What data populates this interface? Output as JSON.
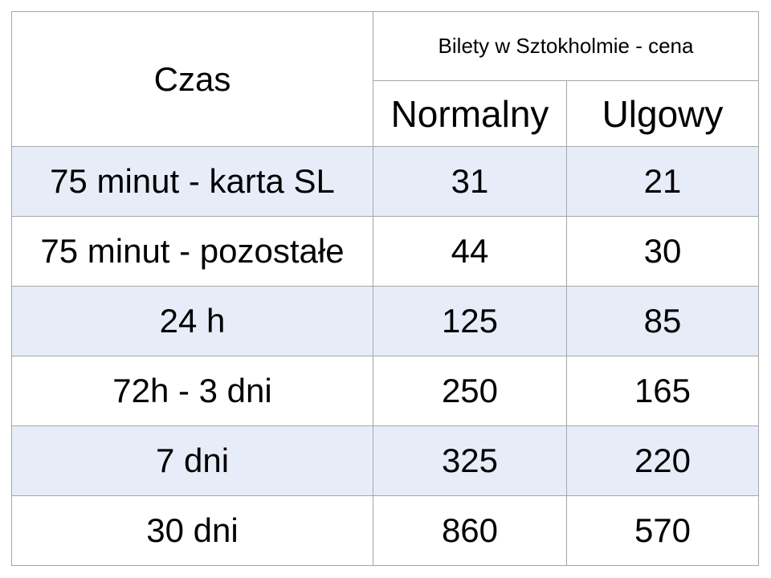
{
  "table": {
    "corner_header": "Czas",
    "group_header": "Bilety w Sztokholmie - cena",
    "column_headers": {
      "normalny": "Normalny",
      "ulgowy": "Ulgowy"
    },
    "rows": [
      {
        "czas": "75 minut - karta SL",
        "normalny": "31",
        "ulgowy": "21"
      },
      {
        "czas": "75 minut - pozostałe",
        "normalny": "44",
        "ulgowy": "30"
      },
      {
        "czas": "24 h",
        "normalny": "125",
        "ulgowy": "85"
      },
      {
        "czas": "72h - 3 dni",
        "normalny": "250",
        "ulgowy": "165"
      },
      {
        "czas": "7 dni",
        "normalny": "325",
        "ulgowy": "220"
      },
      {
        "czas": "30 dni",
        "normalny": "860",
        "ulgowy": "570"
      }
    ],
    "style": {
      "band_color": "#E7EDF8",
      "plain_row_color": "#FFFFFF",
      "border_color": "#A6A6A6",
      "text_color": "#000000",
      "background": "#FFFFFF"
    }
  },
  "chart_data": {
    "type": "table",
    "title": "Bilety w Sztokholmie - cena",
    "columns": [
      "Czas",
      "Normalny",
      "Ulgowy"
    ],
    "rows": [
      [
        "75 minut - karta SL",
        31,
        21
      ],
      [
        "75 minut - pozostałe",
        44,
        30
      ],
      [
        "24 h",
        125,
        85
      ],
      [
        "72h - 3 dni",
        250,
        165
      ],
      [
        "7 dni",
        325,
        220
      ],
      [
        "30 dni",
        860,
        570
      ]
    ],
    "layout": {
      "banded_rows": true,
      "band_rows_indices": [
        0,
        2,
        4
      ],
      "header_levels": 2,
      "group_header_spans_columns": [
        "Normalny",
        "Ulgowy"
      ]
    }
  }
}
